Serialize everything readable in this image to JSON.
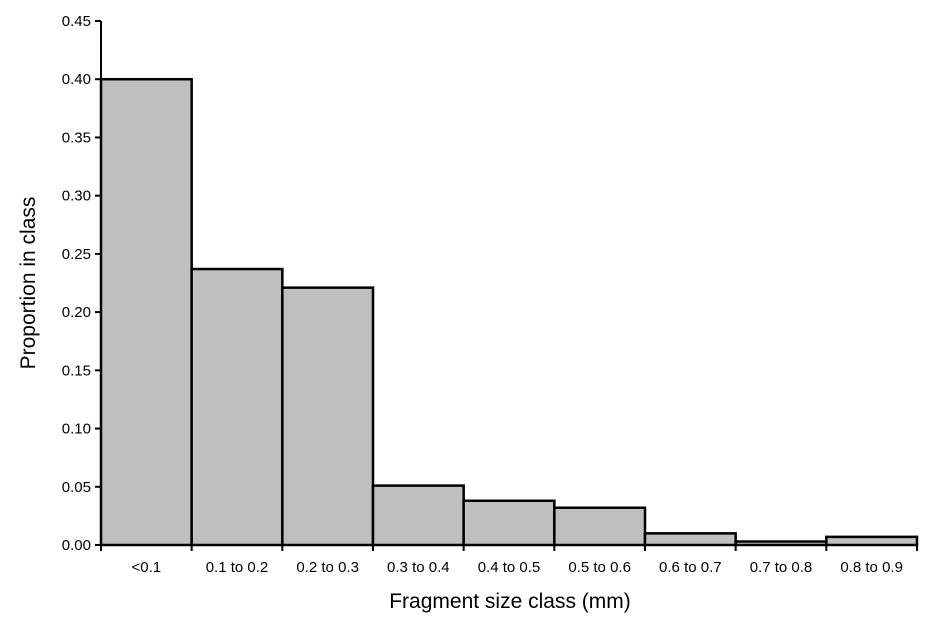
{
  "chart_data": {
    "type": "bar",
    "categories": [
      "<0.1",
      "0.1 to 0.2",
      "0.2 to 0.3",
      "0.3 to 0.4",
      "0.4 to 0.5",
      "0.5 to 0.6",
      "0.6 to 0.7",
      "0.7 to 0.8",
      "0.8 to 0.9"
    ],
    "values": [
      0.4,
      0.237,
      0.221,
      0.051,
      0.038,
      0.032,
      0.01,
      0.003,
      0.007
    ],
    "title": "",
    "xlabel": "Fragment size class (mm)",
    "ylabel": "Proportion in class",
    "ylim": [
      0,
      0.45
    ],
    "yticks": [
      "0.00",
      "0.05",
      "0.10",
      "0.15",
      "0.20",
      "0.25",
      "0.30",
      "0.35",
      "0.40",
      "0.45"
    ],
    "grid": false,
    "bar_color": "#bfbfbf",
    "edge_color": "#000000"
  }
}
